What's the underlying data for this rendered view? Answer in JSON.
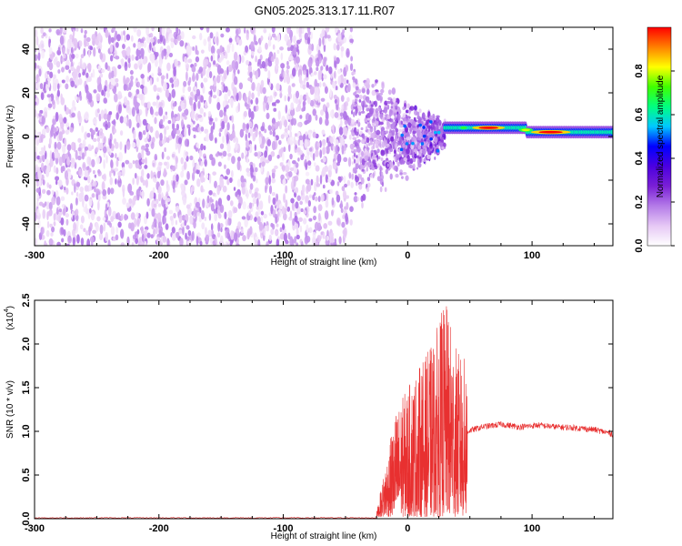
{
  "figure": {
    "title": "GN05.2025.313.17.11.R07"
  },
  "chart_data": [
    {
      "type": "heatmap",
      "xlabel": "Height of straight line (km)",
      "ylabel": "Frequency (Hz)",
      "xlim": [
        -300,
        165
      ],
      "ylim": [
        -50,
        50
      ],
      "xticks": [
        -300,
        -200,
        -100,
        0,
        100
      ],
      "yticks": [
        -40,
        -20,
        0,
        20,
        40
      ],
      "colorbar": {
        "label": "Normalized spectral amplitude",
        "range": [
          0,
          1
        ],
        "ticks": [
          0.0,
          0.2,
          0.4,
          0.6,
          0.8
        ],
        "tick_labels": [
          "0.0",
          "0.2",
          "0.4",
          "0.6",
          "0.8"
        ],
        "colormap": [
          "#ffffff",
          "#e6c8f5",
          "#b47be8",
          "#7a1fd6",
          "#4b00e0",
          "#0000ff",
          "#00c8ff",
          "#00ff80",
          "#40ff00",
          "#ffff00",
          "#ff8000",
          "#ff0000"
        ]
      },
      "regions": [
        {
          "x": [
            -300,
            -45
          ],
          "freq": [
            -50,
            50
          ],
          "amplitude": [
            0.0,
            0.15
          ],
          "description_level": "noise"
        },
        {
          "x": [
            -45,
            30
          ],
          "freq": [
            -25,
            20
          ],
          "amplitude": [
            0.0,
            0.4
          ]
        },
        {
          "x": [
            30,
            165
          ],
          "freq": [
            -3,
            6
          ],
          "amplitude": [
            0.2,
            1.0
          ],
          "center_freq": [
            4,
            2
          ]
        }
      ]
    },
    {
      "type": "line",
      "xlabel": "Height of straight line (km)",
      "ylabel": "SNR (10 * v/v)",
      "y_multiplier": "(x10",
      "y_multiplier_exp": "4",
      "y_multiplier_close": ")",
      "xlim": [
        -300,
        165
      ],
      "ylim": [
        0,
        2.5
      ],
      "xticks": [
        -300,
        -200,
        -100,
        0,
        100
      ],
      "yticks": [
        0.0,
        0.5,
        1.0,
        1.5,
        2.0,
        2.5
      ],
      "ytick_labels": [
        "0.0",
        "0.5",
        "1.0",
        "1.5",
        "2.0",
        "2.5"
      ],
      "series": [
        {
          "color": "#e83030",
          "segments": [
            {
              "x": [
                -300,
                -25
              ],
              "baseline": 0.005,
              "noise": 0.01
            },
            {
              "x": [
                -25,
                48
              ],
              "baseline": 0.02,
              "envelope_x": [
                -25,
                -10,
                0,
                10,
                20,
                30,
                40,
                48
              ],
              "envelope_max": [
                0.05,
                1.2,
                1.5,
                1.75,
                2.0,
                2.5,
                1.9,
                1.8
              ]
            },
            {
              "x": [
                48,
                165
              ],
              "x_points": [
                48,
                60,
                75,
                90,
                105,
                120,
                135,
                150,
                165
              ],
              "y_points": [
                1.0,
                1.05,
                1.08,
                1.05,
                1.07,
                1.05,
                1.04,
                1.02,
                0.97
              ],
              "noise": 0.035
            }
          ]
        }
      ]
    }
  ]
}
